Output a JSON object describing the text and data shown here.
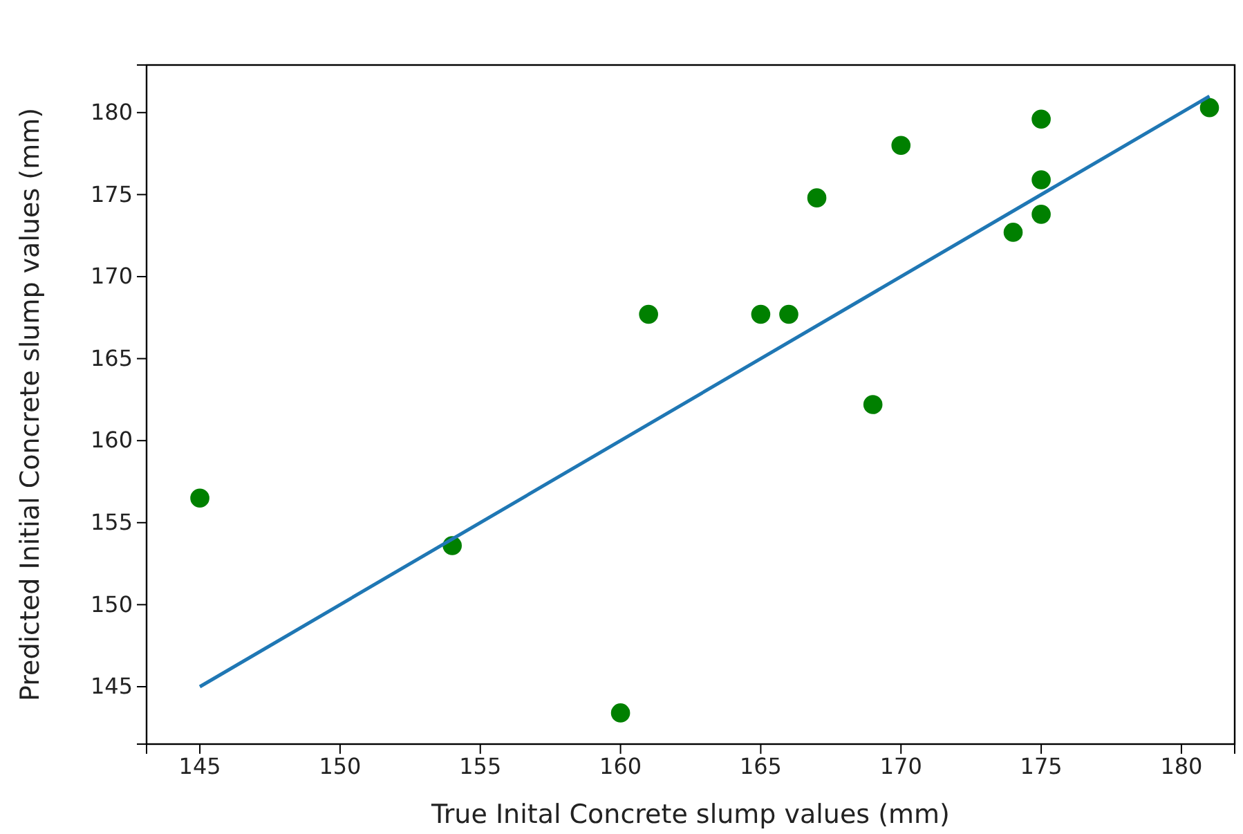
{
  "chart_data": {
    "type": "scatter",
    "xlabel": "True Inital Concrete slump values (mm)",
    "ylabel": "Predicted Initial Concrete slump values (mm)",
    "xlim": [
      143.1,
      181.9
    ],
    "xticks": [
      145,
      150,
      155,
      160,
      165,
      170,
      175,
      180
    ],
    "ylim": [
      141.5,
      182.9
    ],
    "yticks": [
      145,
      150,
      155,
      160,
      165,
      170,
      175,
      180
    ],
    "grid": false,
    "series": [
      {
        "marker": "circle",
        "color": "#008000",
        "x": [
          145,
          154,
          160,
          161,
          165,
          166,
          167,
          169,
          170,
          174,
          175,
          175,
          175,
          181
        ],
        "values": [
          156.5,
          153.6,
          143.4,
          167.7,
          167.7,
          167.7,
          174.8,
          162.2,
          178.0,
          172.7,
          179.6,
          175.9,
          173.8,
          180.3
        ]
      },
      {
        "type": "line",
        "color": "#1f77b4",
        "x": [
          145,
          181
        ],
        "values": [
          145,
          181
        ]
      }
    ]
  }
}
